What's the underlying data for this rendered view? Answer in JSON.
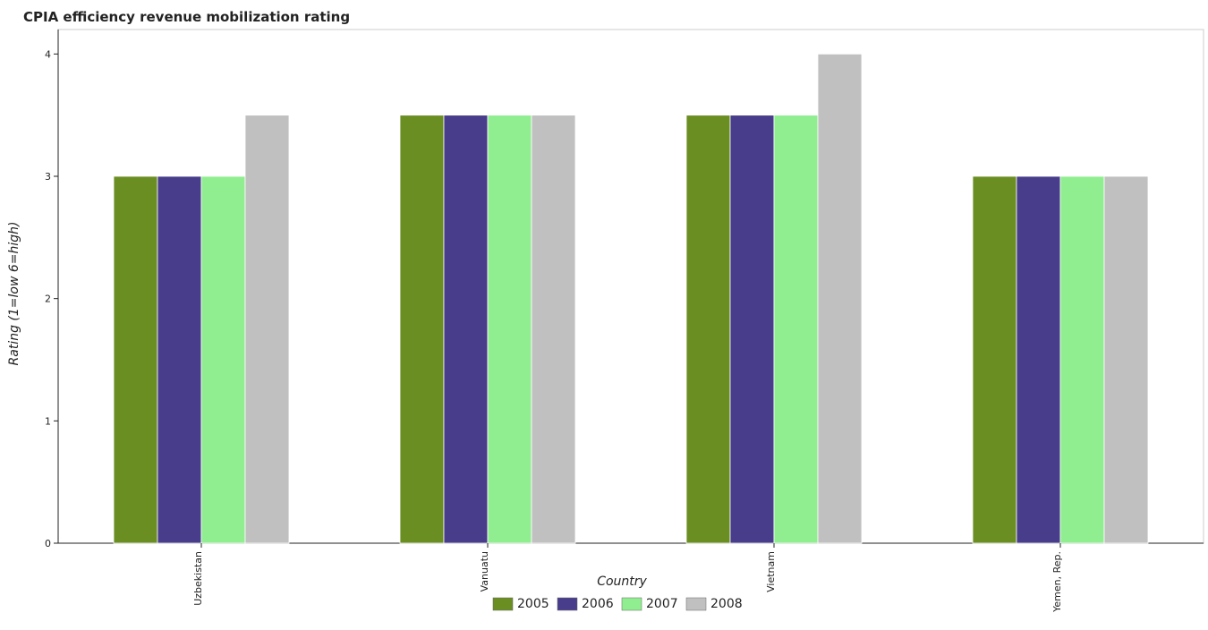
{
  "chart_data": {
    "type": "bar",
    "title": "CPIA efficiency revenue mobilization rating",
    "xlabel": "Country",
    "ylabel": "Rating (1=low 6=high)",
    "categories": [
      "Uzbekistan",
      "Vanuatu",
      "Vietnam",
      "Yemen, Rep."
    ],
    "series": [
      {
        "name": "2005",
        "color": "#6b8e23",
        "values": [
          3.0,
          3.5,
          3.5,
          3.0
        ]
      },
      {
        "name": "2006",
        "color": "#483d8b",
        "values": [
          3.0,
          3.5,
          3.5,
          3.0
        ]
      },
      {
        "name": "2007",
        "color": "#90ee90",
        "values": [
          3.0,
          3.5,
          3.5,
          3.0
        ]
      },
      {
        "name": "2008",
        "color": "#c0c0c0",
        "values": [
          3.5,
          3.5,
          4.0,
          3.0
        ]
      }
    ],
    "ylim": [
      0,
      4.2
    ],
    "yticks": [
      "0",
      "1",
      "2",
      "3",
      "4"
    ],
    "grid": false,
    "legend_position": "bottom-center"
  }
}
